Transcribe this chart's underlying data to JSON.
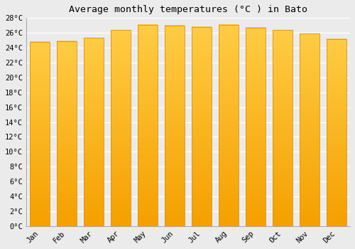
{
  "title": "Average monthly temperatures (°C ) in Bato",
  "months": [
    "Jan",
    "Feb",
    "Mar",
    "Apr",
    "May",
    "Jun",
    "Jul",
    "Aug",
    "Sep",
    "Oct",
    "Nov",
    "Dec"
  ],
  "values": [
    24.8,
    24.9,
    25.3,
    26.4,
    27.1,
    27.0,
    26.8,
    27.1,
    26.7,
    26.4,
    25.9,
    25.2
  ],
  "bar_color_top": "#FFCC44",
  "bar_color_bottom": "#F5A000",
  "bar_edge_color": "#E09000",
  "ylim_min": 0,
  "ylim_max": 28,
  "ytick_step": 2,
  "background_color": "#EBEBEB",
  "grid_color": "#FFFFFF",
  "title_fontsize": 9.5,
  "tick_fontsize": 7.5,
  "font_family": "monospace"
}
